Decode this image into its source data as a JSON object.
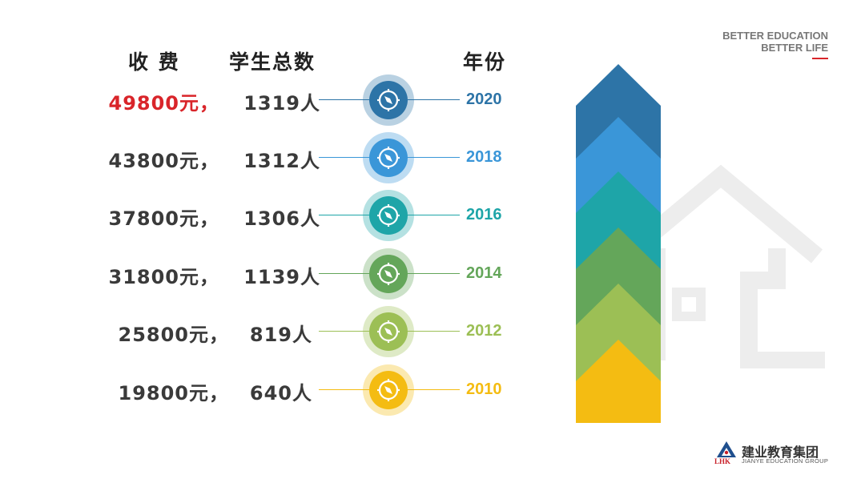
{
  "headers": {
    "fee": "收 费",
    "students": "学生总数",
    "year": "年份"
  },
  "tagline": {
    "line1": "BETTER EDUCATION",
    "line2": "BETTER LIFE"
  },
  "rows": [
    {
      "fee": "49800元，",
      "students": "1319人",
      "year": "2020",
      "color": "#2d74a7",
      "fee_color": "#d9252a"
    },
    {
      "fee": "43800元，",
      "students": "1312人",
      "year": "2018",
      "color": "#3a96d8",
      "fee_color": "#3a3a3a"
    },
    {
      "fee": "37800元，",
      "students": "1306人",
      "year": "2016",
      "color": "#1ea5a8",
      "fee_color": "#3a3a3a"
    },
    {
      "fee": "31800元，",
      "students": "1139人",
      "year": "2014",
      "color": "#64a65a",
      "fee_color": "#3a3a3a"
    },
    {
      "fee": "25800元，",
      "students": "819人",
      "year": "2012",
      "color": "#9cbf55",
      "fee_color": "#3a3a3a"
    },
    {
      "fee": "19800元，",
      "students": "640人",
      "year": "2010",
      "color": "#f4bc12",
      "fee_color": "#3a3a3a"
    }
  ],
  "arrow_colors": [
    "#2d74a7",
    "#3a96d8",
    "#1ea5a8",
    "#64a65a",
    "#9cbf55",
    "#f4bc12"
  ],
  "logo": {
    "mark": "LHK",
    "name": "建业教育集团",
    "sub": "JIANYE EDUCATION GROUP"
  },
  "icons": {
    "row_icon": "compass-icon",
    "background": "house-outline-icon",
    "logo": "triangle-logo-icon"
  }
}
